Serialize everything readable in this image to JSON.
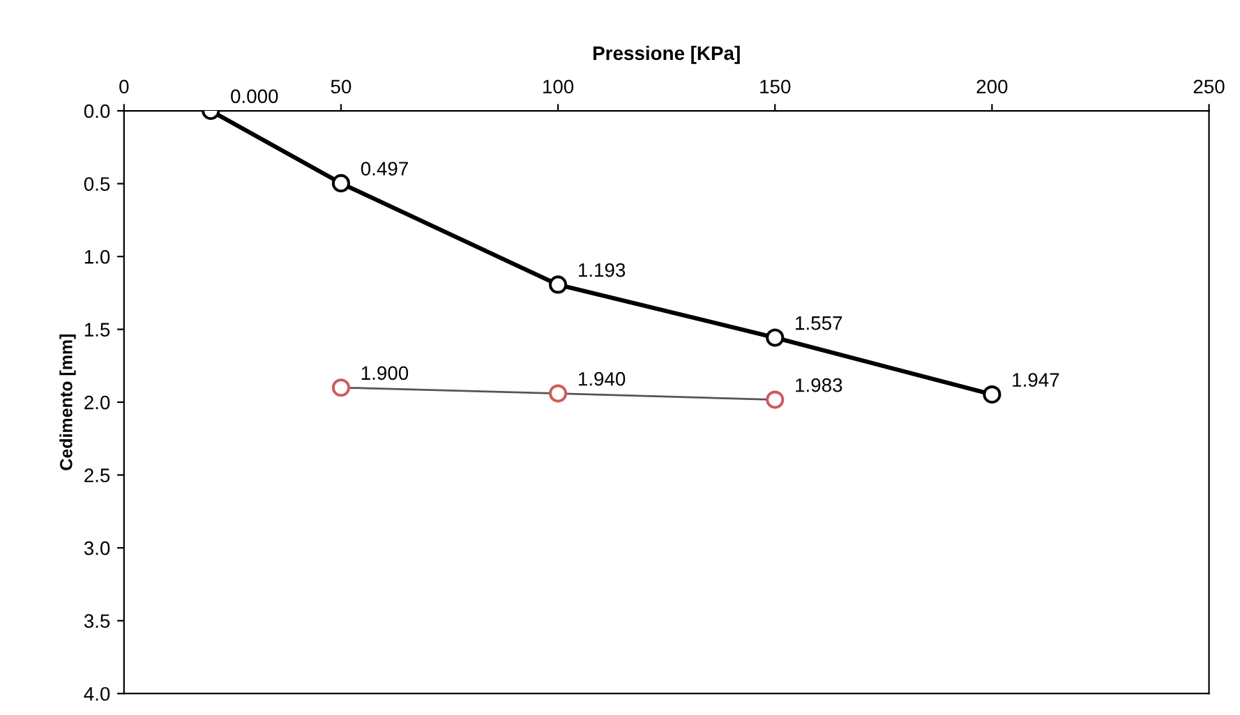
{
  "chart_data": {
    "type": "line",
    "xlabel": "Pressione [KPa]",
    "ylabel": "Cedimento [mm]",
    "xlim": [
      0,
      250
    ],
    "xticks": [
      0,
      50,
      100,
      150,
      200,
      250
    ],
    "ylim": [
      4.0,
      0.0
    ],
    "yticks": [
      {
        "value": 0,
        "label": "0.0"
      },
      0.5,
      {
        "value": 1,
        "label": "1.0"
      },
      1.5,
      {
        "value": 2,
        "label": "2.0"
      },
      2.5,
      {
        "value": 3,
        "label": "3.0"
      },
      3.5,
      {
        "value": 4,
        "label": "4.0"
      }
    ],
    "grid": false,
    "marker": "circle",
    "line_style": "solid",
    "series": [
      {
        "color": "#000000",
        "x": [
          20,
          50,
          100,
          150,
          200
        ],
        "values": [
          0.0,
          0.497,
          1.193,
          1.557,
          1.947
        ],
        "value_labels": [
          "0.000",
          "0.497",
          "1.193",
          "1.557",
          "1.947"
        ]
      },
      {
        "color": "#d05a5a",
        "x": [
          50,
          100,
          150
        ],
        "values": [
          1.9,
          1.94,
          1.983
        ],
        "value_labels": [
          "1.900",
          "1.940",
          "1.983"
        ]
      }
    ]
  }
}
